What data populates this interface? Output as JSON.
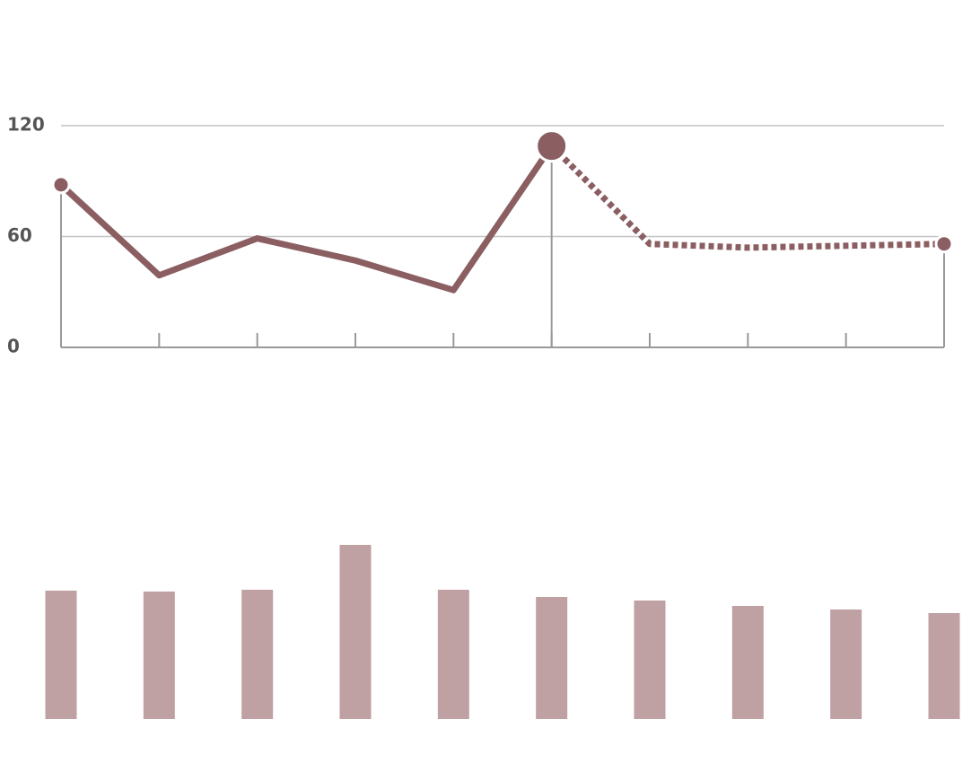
{
  "chart_data": [
    {
      "type": "line",
      "categories": [
        null,
        null,
        null,
        null,
        null,
        null,
        null,
        null,
        null,
        null
      ],
      "series": [
        {
          "color": "#8b5e62",
          "style": "solid",
          "values": [
            88,
            39,
            59,
            47,
            31,
            109,
            null,
            null,
            null,
            null
          ]
        },
        {
          "color": "#8b5e62",
          "style": "dashed",
          "values": [
            null,
            null,
            null,
            null,
            null,
            109,
            56,
            54,
            55,
            56
          ]
        }
      ],
      "highlight": 5,
      "ylim": [
        0,
        120
      ],
      "yticks": [
        0,
        60,
        120
      ],
      "grid": true
    },
    {
      "type": "bar",
      "categories": [
        null,
        null,
        null,
        null,
        null,
        null,
        null,
        null,
        null,
        null
      ],
      "values": [
        143,
        142,
        144,
        194,
        144,
        136,
        132,
        126,
        122,
        118
      ],
      "color": "#bfa0a3",
      "ylim": [
        0,
        240
      ]
    }
  ]
}
